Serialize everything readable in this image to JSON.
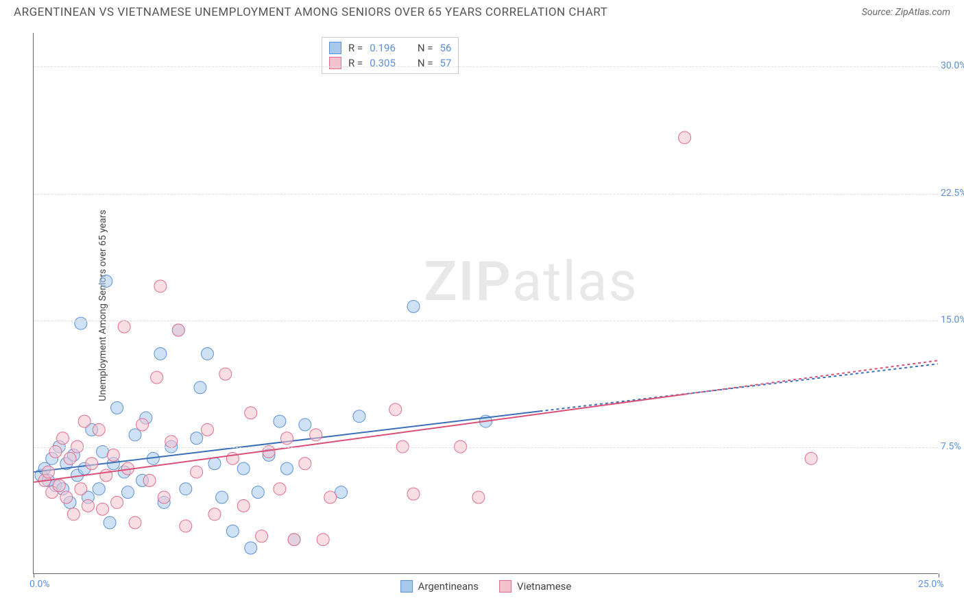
{
  "title": "ARGENTINEAN VS VIETNAMESE UNEMPLOYMENT AMONG SENIORS OVER 65 YEARS CORRELATION CHART",
  "source": "Source: ZipAtlas.com",
  "watermark_a": "ZIP",
  "watermark_b": "atlas",
  "chart": {
    "type": "scatter-with-regression",
    "ylabel": "Unemployment Among Seniors over 65 years",
    "xlim": [
      0,
      25
    ],
    "ylim": [
      0,
      32
    ],
    "xticks": [
      0,
      25
    ],
    "xtick_labels": [
      "0.0%",
      "25.0%"
    ],
    "yticks": [
      7.5,
      15.0,
      22.5,
      30.0
    ],
    "ytick_labels": [
      "7.5%",
      "15.0%",
      "22.5%",
      "30.0%"
    ],
    "grid_color": "#dddddd",
    "axis_color": "#666666",
    "tick_label_color": "#5b8fd6",
    "background_color": "#ffffff",
    "marker_radius": 9,
    "marker_opacity": 0.55,
    "line_width": 2,
    "series": [
      {
        "name": "Argentineans",
        "fill": "#a8c8ec",
        "stroke": "#5b8fd6",
        "line_color": "#3a6fb8",
        "line_dash_extended": "4 4",
        "R": "0.196",
        "N": "56",
        "reg_start": [
          0,
          6.0
        ],
        "reg_solid_end": [
          14,
          9.6
        ],
        "reg_end": [
          25,
          12.4
        ],
        "points": [
          [
            0.2,
            5.8
          ],
          [
            0.3,
            6.2
          ],
          [
            0.4,
            5.5
          ],
          [
            0.5,
            6.8
          ],
          [
            0.6,
            5.2
          ],
          [
            0.7,
            7.5
          ],
          [
            0.8,
            5.0
          ],
          [
            0.9,
            6.5
          ],
          [
            1.0,
            4.2
          ],
          [
            1.1,
            7.0
          ],
          [
            1.2,
            5.8
          ],
          [
            1.3,
            14.8
          ],
          [
            1.4,
            6.2
          ],
          [
            1.5,
            4.5
          ],
          [
            1.6,
            8.5
          ],
          [
            1.8,
            5.0
          ],
          [
            1.9,
            7.2
          ],
          [
            2.0,
            17.3
          ],
          [
            2.1,
            3.0
          ],
          [
            2.2,
            6.5
          ],
          [
            2.3,
            9.8
          ],
          [
            2.5,
            6.0
          ],
          [
            2.6,
            4.8
          ],
          [
            2.8,
            8.2
          ],
          [
            3.0,
            5.5
          ],
          [
            3.1,
            9.2
          ],
          [
            3.3,
            6.8
          ],
          [
            3.5,
            13.0
          ],
          [
            3.6,
            4.2
          ],
          [
            3.8,
            7.5
          ],
          [
            4.0,
            14.4
          ],
          [
            4.2,
            5.0
          ],
          [
            4.5,
            8.0
          ],
          [
            4.6,
            11.0
          ],
          [
            4.8,
            13.0
          ],
          [
            5.0,
            6.5
          ],
          [
            5.2,
            4.5
          ],
          [
            5.5,
            2.5
          ],
          [
            5.8,
            6.2
          ],
          [
            6.0,
            1.5
          ],
          [
            6.2,
            4.8
          ],
          [
            6.5,
            7.0
          ],
          [
            6.8,
            9.0
          ],
          [
            7.0,
            6.2
          ],
          [
            7.2,
            2.0
          ],
          [
            7.5,
            8.8
          ],
          [
            8.5,
            4.8
          ],
          [
            9.0,
            9.3
          ],
          [
            10.5,
            15.8
          ],
          [
            12.5,
            9.0
          ]
        ]
      },
      {
        "name": "Vietnamese",
        "fill": "#f4c2cd",
        "stroke": "#e06b8a",
        "line_color": "#d94f76",
        "line_dash_extended": "4 4",
        "R": "0.305",
        "N": "57",
        "reg_start": [
          0,
          5.4
        ],
        "reg_solid_end": [
          18,
          10.6
        ],
        "reg_end": [
          25,
          12.6
        ],
        "points": [
          [
            0.3,
            5.5
          ],
          [
            0.4,
            6.0
          ],
          [
            0.5,
            4.8
          ],
          [
            0.6,
            7.2
          ],
          [
            0.7,
            5.2
          ],
          [
            0.8,
            8.0
          ],
          [
            0.9,
            4.5
          ],
          [
            1.0,
            6.8
          ],
          [
            1.1,
            3.5
          ],
          [
            1.2,
            7.5
          ],
          [
            1.3,
            5.0
          ],
          [
            1.4,
            9.0
          ],
          [
            1.5,
            4.0
          ],
          [
            1.6,
            6.5
          ],
          [
            1.8,
            8.5
          ],
          [
            1.9,
            3.8
          ],
          [
            2.0,
            5.8
          ],
          [
            2.2,
            7.0
          ],
          [
            2.3,
            4.2
          ],
          [
            2.5,
            14.6
          ],
          [
            2.6,
            6.2
          ],
          [
            2.8,
            3.0
          ],
          [
            3.0,
            8.8
          ],
          [
            3.2,
            5.5
          ],
          [
            3.4,
            11.6
          ],
          [
            3.5,
            17.0
          ],
          [
            3.6,
            4.5
          ],
          [
            3.8,
            7.8
          ],
          [
            4.0,
            14.4
          ],
          [
            4.2,
            2.8
          ],
          [
            4.5,
            6.0
          ],
          [
            4.8,
            8.5
          ],
          [
            5.0,
            3.5
          ],
          [
            5.3,
            11.8
          ],
          [
            5.5,
            6.8
          ],
          [
            5.8,
            4.0
          ],
          [
            6.0,
            9.5
          ],
          [
            6.3,
            2.2
          ],
          [
            6.5,
            7.2
          ],
          [
            6.8,
            5.0
          ],
          [
            7.0,
            8.0
          ],
          [
            7.2,
            2.0
          ],
          [
            7.5,
            6.5
          ],
          [
            7.8,
            8.2
          ],
          [
            8.0,
            2.0
          ],
          [
            8.2,
            4.5
          ],
          [
            10.0,
            9.7
          ],
          [
            10.2,
            7.5
          ],
          [
            10.5,
            4.7
          ],
          [
            11.8,
            7.5
          ],
          [
            12.3,
            4.5
          ],
          [
            18.0,
            25.8
          ],
          [
            21.5,
            6.8
          ]
        ]
      }
    ]
  },
  "bottom_legend": [
    {
      "swatch": "blue",
      "label": "Argentineans"
    },
    {
      "swatch": "pink",
      "label": "Vietnamese"
    }
  ],
  "stats_labels": {
    "R": "R  =",
    "N": "N  ="
  }
}
